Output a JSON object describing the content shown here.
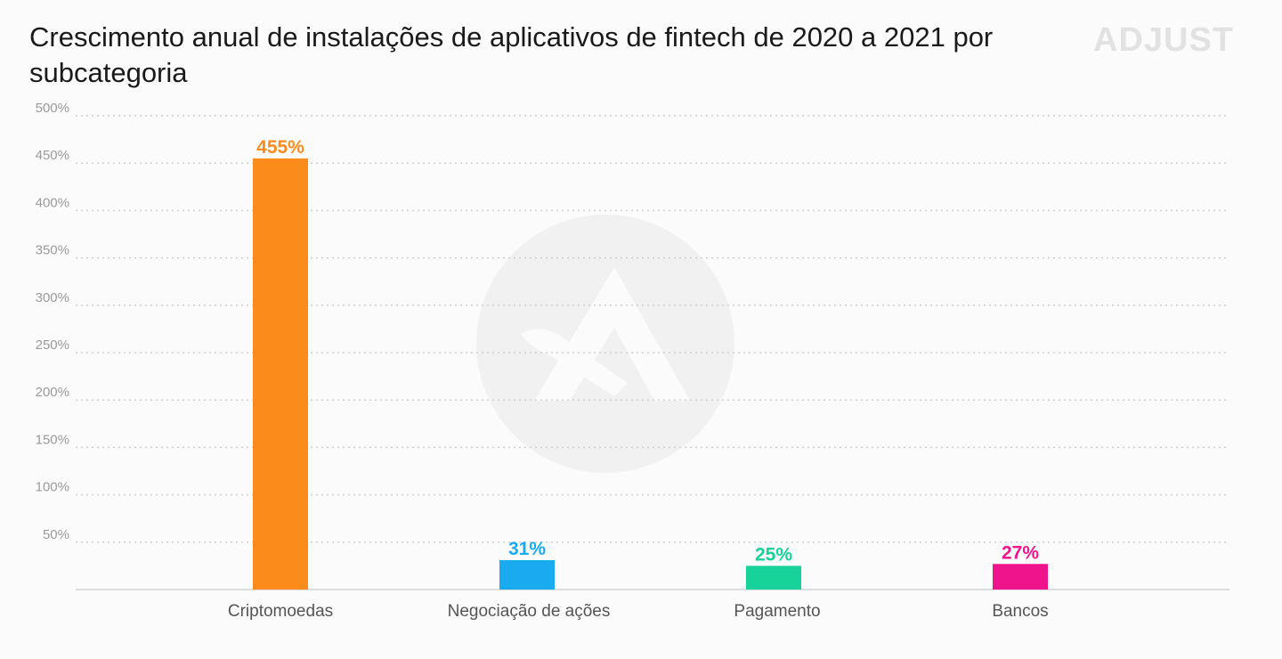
{
  "chart_data": {
    "type": "bar",
    "title": "Crescimento anual de instalações de aplicativos de fintech de 2020 a 2021 por subcategoria",
    "categories": [
      "Criptomoedas",
      "Negociação de ações",
      "Pagamento",
      "Bancos"
    ],
    "values": [
      455,
      31,
      25,
      27
    ],
    "data_labels": [
      "455%",
      "31%",
      "25%",
      "27%"
    ],
    "colors": [
      "#fb8c1c",
      "#1aaaf0",
      "#17d39a",
      "#f0148c"
    ],
    "ylim": [
      0,
      500
    ],
    "yticks": [
      50,
      100,
      150,
      200,
      250,
      300,
      350,
      400,
      450,
      500
    ],
    "ytick_labels": [
      "50%",
      "100%",
      "150%",
      "200%",
      "250%",
      "300%",
      "350%",
      "400%",
      "450%",
      "500%"
    ],
    "xlabel": "",
    "ylabel": "",
    "grid": true
  },
  "brand": {
    "name": "ADJUST"
  }
}
